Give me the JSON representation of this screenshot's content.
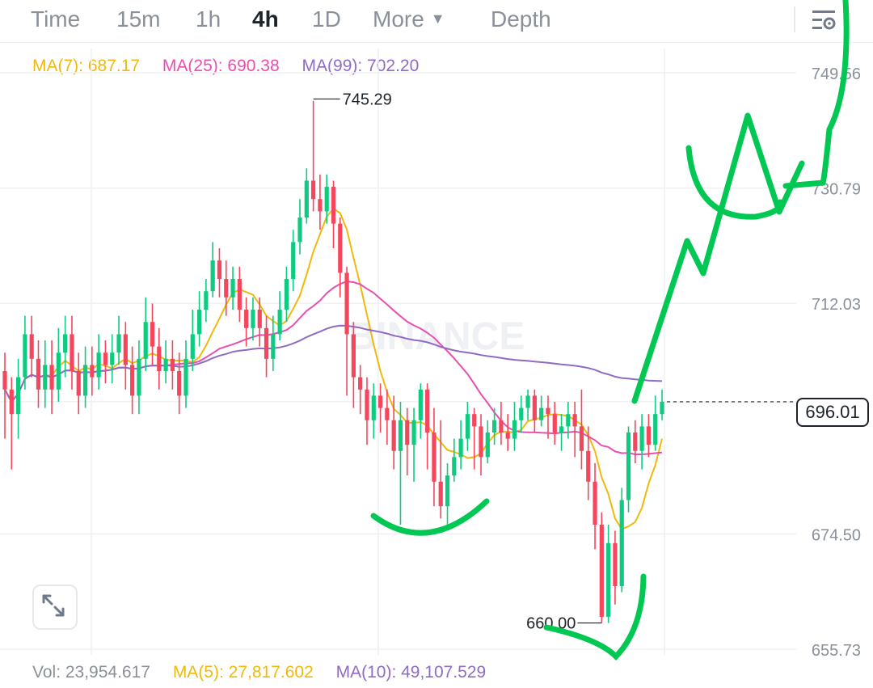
{
  "toolbar": {
    "tabs": [
      {
        "label": "Time",
        "active": false
      },
      {
        "label": "15m",
        "active": false
      },
      {
        "label": "1h",
        "active": false
      },
      {
        "label": "4h",
        "active": true
      },
      {
        "label": "1D",
        "active": false
      },
      {
        "label": "More",
        "active": false
      },
      {
        "label": "Depth",
        "active": false
      }
    ],
    "settings_icon": "chart-settings-icon"
  },
  "indicators": {
    "ma7": "MA(7): 687.17",
    "ma25": "MA(25): 690.38",
    "ma99": "MA(99): 702.20"
  },
  "volume": {
    "vol": "Vol: 23,954.617",
    "ma5": "MA(5): 27,817.602",
    "ma10": "MA(10): 49,107.529"
  },
  "watermark": "BINANCE",
  "current_price": "696.01",
  "expand_icon": "expand-arrows-icon",
  "colors": {
    "up": "#0ecb81",
    "down": "#f6465d",
    "ma7": "#f0b90b",
    "ma25": "#e84fb0",
    "ma99": "#8f6bc4",
    "drawing": "#00c853",
    "text_muted": "#8a9099"
  },
  "chart_data": {
    "type": "candlestick",
    "y_axis_ticks": [
      "749.56",
      "730.79",
      "712.03",
      "696.01",
      "674.50",
      "655.73"
    ],
    "ylim": [
      655.73,
      749.56
    ],
    "high_annotation": "745.29",
    "low_annotation": "660.00",
    "ma_series": [
      {
        "name": "MA(7)",
        "value": 687.17
      },
      {
        "name": "MA(25)",
        "value": 690.38
      },
      {
        "name": "MA(99)",
        "value": 702.2
      }
    ],
    "candles": [
      [
        701,
        698,
        704,
        690
      ],
      [
        698,
        694,
        700,
        685
      ],
      [
        694,
        700,
        703,
        690
      ],
      [
        700,
        707,
        710,
        698
      ],
      [
        707,
        703,
        710,
        700
      ],
      [
        703,
        698,
        706,
        695
      ],
      [
        698,
        702,
        706,
        695
      ],
      [
        702,
        698,
        706,
        694
      ],
      [
        698,
        704,
        708,
        696
      ],
      [
        704,
        707,
        710,
        700
      ],
      [
        707,
        701,
        710,
        698
      ],
      [
        701,
        697,
        704,
        694
      ],
      [
        697,
        702,
        705,
        695
      ],
      [
        702,
        700,
        705,
        697
      ],
      [
        700,
        704,
        707,
        698
      ],
      [
        704,
        702,
        706,
        699
      ],
      [
        702,
        704,
        707,
        699
      ],
      [
        704,
        707,
        710,
        702
      ],
      [
        707,
        702,
        709,
        698
      ],
      [
        702,
        697,
        705,
        694
      ],
      [
        697,
        703,
        706,
        694
      ],
      [
        703,
        709,
        713,
        701
      ],
      [
        709,
        705,
        712,
        702
      ],
      [
        705,
        701,
        708,
        698
      ],
      [
        701,
        703,
        706,
        699
      ],
      [
        703,
        701,
        706,
        698
      ],
      [
        701,
        697,
        704,
        694
      ],
      [
        697,
        703,
        706,
        695
      ],
      [
        703,
        707,
        711,
        701
      ],
      [
        707,
        711,
        714,
        705
      ],
      [
        711,
        714,
        716,
        709
      ],
      [
        714,
        719,
        722,
        713
      ],
      [
        719,
        716,
        721,
        713
      ],
      [
        716,
        713,
        719,
        710
      ],
      [
        713,
        716,
        718,
        711
      ],
      [
        716,
        711,
        718,
        709
      ],
      [
        711,
        708,
        713,
        705
      ],
      [
        708,
        711,
        713,
        706
      ],
      [
        711,
        708,
        713,
        705
      ],
      [
        708,
        703,
        710,
        700
      ],
      [
        703,
        707,
        710,
        701
      ],
      [
        707,
        711,
        714,
        706
      ],
      [
        711,
        716,
        718,
        709
      ],
      [
        716,
        722,
        724,
        714
      ],
      [
        722,
        726,
        729,
        720
      ],
      [
        726,
        732,
        734,
        725
      ],
      [
        732,
        729,
        745,
        727
      ],
      [
        729,
        727,
        733,
        724
      ],
      [
        727,
        731,
        733,
        725
      ],
      [
        731,
        725,
        732,
        721
      ],
      [
        725,
        717,
        726,
        713
      ],
      [
        717,
        707,
        718,
        697
      ],
      [
        707,
        700,
        709,
        695
      ],
      [
        700,
        698,
        702,
        694
      ],
      [
        698,
        693,
        700,
        689
      ],
      [
        693,
        697,
        699,
        690
      ],
      [
        697,
        695,
        699,
        691
      ],
      [
        695,
        693,
        698,
        689
      ],
      [
        693,
        688,
        697,
        685
      ],
      [
        688,
        693,
        696,
        676
      ],
      [
        693,
        689,
        695,
        684
      ],
      [
        689,
        693,
        695,
        683
      ],
      [
        693,
        698,
        699,
        690
      ],
      [
        698,
        691,
        699,
        685
      ],
      [
        691,
        683,
        695,
        679
      ],
      [
        683,
        679,
        693,
        677
      ],
      [
        679,
        684,
        686,
        676
      ],
      [
        684,
        687,
        690,
        683
      ],
      [
        687,
        690,
        693,
        685
      ],
      [
        690,
        694,
        696,
        688
      ],
      [
        694,
        692,
        695,
        685
      ],
      [
        692,
        687,
        694,
        684
      ],
      [
        687,
        691,
        693,
        686
      ],
      [
        691,
        693,
        695,
        689
      ],
      [
        693,
        691,
        696,
        689
      ],
      [
        691,
        690,
        694,
        688
      ],
      [
        690,
        693,
        696,
        688
      ],
      [
        693,
        695,
        697,
        691
      ],
      [
        695,
        697,
        698,
        693
      ],
      [
        697,
        693,
        698,
        691
      ],
      [
        693,
        695,
        697,
        692
      ],
      [
        695,
        694,
        697,
        690
      ],
      [
        694,
        691,
        696,
        689
      ],
      [
        691,
        692,
        694,
        688
      ],
      [
        692,
        694,
        696,
        690
      ],
      [
        694,
        692,
        696,
        687
      ],
      [
        692,
        688,
        698,
        685
      ],
      [
        688,
        683,
        692,
        680
      ],
      [
        683,
        676,
        686,
        672
      ],
      [
        676,
        661,
        678,
        660
      ],
      [
        661,
        673,
        676,
        660
      ],
      [
        673,
        666,
        675,
        663
      ],
      [
        666,
        680,
        682,
        665
      ],
      [
        680,
        691,
        692,
        678
      ],
      [
        691,
        688,
        693,
        686
      ],
      [
        688,
        692,
        694,
        685
      ],
      [
        692,
        689,
        694,
        687
      ],
      [
        689,
        694,
        697,
        688
      ],
      [
        694,
        696,
        698,
        693
      ]
    ]
  }
}
